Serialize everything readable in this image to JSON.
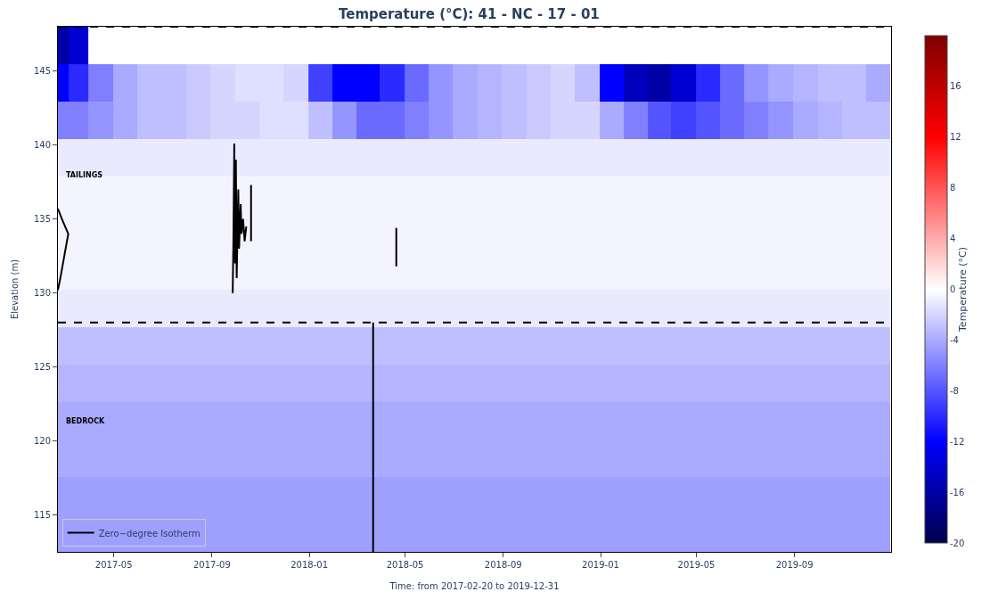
{
  "chart_data": {
    "type": "heatmap",
    "title": "Temperature (°C): 41 - NC - 17 - 01",
    "xlabel": "Time: from 2017-02-20 to 2019-12-31",
    "ylabel": "Elevation (m)",
    "clabel": "Temperature (°C)",
    "x": [
      "2017-02-24",
      "2017-03-15",
      "2017-04-15",
      "2017-05-15",
      "2017-06-15",
      "2017-07-15",
      "2017-08-15",
      "2017-09-15",
      "2017-10-15",
      "2017-11-15",
      "2017-12-15",
      "2018-01-15",
      "2018-02-15",
      "2018-03-15",
      "2018-04-15",
      "2018-05-15",
      "2018-06-15",
      "2018-07-15",
      "2018-08-15",
      "2018-09-15",
      "2018-10-15",
      "2018-11-15",
      "2018-12-15",
      "2019-01-15",
      "2019-02-15",
      "2019-03-15",
      "2019-04-15",
      "2019-05-15",
      "2019-06-15",
      "2019-07-15",
      "2019-08-15",
      "2019-09-15",
      "2019-10-15",
      "2019-11-15",
      "2019-12-15"
    ],
    "cells": [
      [
        -16,
        -14,
        null,
        null,
        null,
        null,
        null,
        null,
        null,
        null,
        null,
        null,
        null,
        null,
        null,
        null,
        null,
        null,
        null,
        null,
        null,
        null,
        null,
        null,
        null,
        null,
        null,
        null,
        null,
        null,
        null,
        null,
        null,
        null,
        null
      ],
      [
        -12,
        -10,
        -6,
        -4,
        -3,
        -3,
        -2.5,
        -2,
        -1.5,
        -1.5,
        -2,
        -9,
        -12,
        -12,
        -10,
        -7,
        -5,
        -4,
        -3.5,
        -3,
        -2.5,
        -2,
        -3,
        -12,
        -15,
        -16,
        -14,
        -10,
        -7,
        -5,
        -4,
        -3.5,
        -3,
        -3,
        -4
      ],
      [
        -6,
        -6,
        -5,
        -4,
        -3,
        -3,
        -2.5,
        -2,
        -2,
        -1.5,
        -1.5,
        -3,
        -5,
        -7,
        -7,
        -6,
        -5,
        -4,
        -3.5,
        -3,
        -2.5,
        -2,
        -2,
        -4,
        -6,
        -8,
        -9,
        -8,
        -7,
        -6,
        -5,
        -4,
        -3.5,
        -3,
        -3
      ],
      [
        -1,
        -1,
        -1,
        -1,
        -1,
        -1,
        -1,
        -1,
        -1,
        -1,
        -1,
        -1,
        -1,
        -1,
        -1,
        -1,
        -1,
        -1,
        -1,
        -1,
        -1,
        -1,
        -1,
        -1,
        -1,
        -1,
        -1,
        -1,
        -1,
        -1,
        -1,
        -1,
        -1,
        -1,
        -1
      ],
      [
        -0.5,
        -0.5,
        -0.5,
        -0.5,
        -0.5,
        -0.5,
        -0.5,
        -0.5,
        -0.5,
        -0.5,
        -0.5,
        -0.5,
        -0.5,
        -0.5,
        -0.5,
        -0.5,
        -0.5,
        -0.5,
        -0.5,
        -0.5,
        -0.5,
        -0.5,
        -0.5,
        -0.5,
        -0.5,
        -0.5,
        -0.5,
        -0.5,
        -0.5,
        -0.5,
        -0.5,
        -0.5,
        -0.5,
        -0.5,
        -0.5
      ],
      [
        -0.5,
        -0.5,
        -0.5,
        -0.5,
        -0.5,
        -0.5,
        -0.5,
        -0.5,
        -0.5,
        -0.5,
        -0.5,
        -0.5,
        -0.5,
        -0.5,
        -0.5,
        -0.5,
        -0.5,
        -0.5,
        -0.5,
        -0.5,
        -0.5,
        -0.5,
        -0.5,
        -0.5,
        -0.5,
        -0.5,
        -0.5,
        -0.5,
        -0.5,
        -0.5,
        -0.5,
        -0.5,
        -0.5,
        -0.5,
        -0.5
      ],
      [
        -0.5,
        -0.5,
        -0.5,
        -0.5,
        -0.5,
        -0.5,
        -0.5,
        -0.5,
        -0.5,
        -0.5,
        -0.5,
        -0.5,
        -0.5,
        -0.5,
        -0.5,
        -0.5,
        -0.5,
        -0.5,
        -0.5,
        -0.5,
        -0.5,
        -0.5,
        -0.5,
        -0.5,
        -0.5,
        -0.5,
        -0.5,
        -0.5,
        -0.5,
        -0.5,
        -0.5,
        -0.5,
        -0.5,
        -0.5,
        -0.5
      ],
      [
        -1,
        -1,
        -1,
        -1,
        -1,
        -1,
        -1,
        -1,
        -1,
        -1,
        -1,
        -1,
        -1,
        -1,
        -1,
        -1,
        -1,
        -1,
        -1,
        -1,
        -1,
        -1,
        -1,
        -1,
        -1,
        -1,
        -1,
        -1,
        -1,
        -1,
        -1,
        -1,
        -1,
        -1,
        -1
      ],
      [
        -3,
        -3,
        -3,
        -3,
        -3,
        -3,
        -3,
        -3,
        -3,
        -3,
        -3,
        -3,
        -3,
        -3,
        -3,
        -3,
        -3,
        -3,
        -3,
        -3,
        -3,
        -3,
        -3,
        -3,
        -3,
        -3,
        -3,
        -3,
        -3,
        -3,
        -3,
        -3,
        -3,
        -3,
        -3
      ],
      [
        -3.5,
        -3.5,
        -3.5,
        -3.5,
        -3.5,
        -3.5,
        -3.5,
        -3.5,
        -3.5,
        -3.5,
        -3.5,
        -3.5,
        -3.5,
        -3.5,
        -3.5,
        -3.5,
        -3.5,
        -3.5,
        -3.5,
        -3.5,
        -3.5,
        -3.5,
        -3.5,
        -3.5,
        -3.5,
        -3.5,
        -3.5,
        -3.5,
        -3.5,
        -3.5,
        -3.5,
        -3.5,
        -3.5,
        -3.5,
        -3.5
      ],
      [
        -4,
        -4,
        -4,
        -4,
        -4,
        -4,
        -4,
        -4,
        -4,
        -4,
        -4,
        -4,
        -4,
        -4,
        -4,
        -4,
        -4,
        -4,
        -4,
        -4,
        -4,
        -4,
        -4,
        -4,
        -4,
        -4,
        -4,
        -4,
        -4,
        -4,
        -4,
        -4,
        -4,
        -4,
        -4
      ],
      [
        -4,
        -4,
        -4,
        -4,
        -4,
        -4,
        -4,
        -4,
        -4,
        -4,
        -4,
        -4,
        -4,
        -4,
        -4,
        -4,
        -4,
        -4,
        -4,
        -4,
        -4,
        -4,
        -4,
        -4,
        -4,
        -4,
        -4,
        -4,
        -4,
        -4,
        -4,
        -4,
        -4,
        -4,
        -4
      ],
      [
        -4.5,
        -4.5,
        -4.5,
        -4.5,
        -4.5,
        -4.5,
        -4.5,
        -4.5,
        -4.5,
        -4.5,
        -4.5,
        -4.5,
        -4.5,
        -4.5,
        -4.5,
        -4.5,
        -4.5,
        -4.5,
        -4.5,
        -4.5,
        -4.5,
        -4.5,
        -4.5,
        -4.5,
        -4.5,
        -4.5,
        -4.5,
        -4.5,
        -4.5,
        -4.5,
        -4.5,
        -4.5,
        -4.5,
        -4.5,
        -4.5
      ],
      [
        -4.5,
        -4.5,
        -4.5,
        -4.5,
        -4.5,
        -4.5,
        -4.5,
        -4.5,
        -4.5,
        -4.5,
        -4.5,
        -4.5,
        -4.5,
        -4.5,
        -4.5,
        -4.5,
        -4.5,
        -4.5,
        -4.5,
        -4.5,
        -4.5,
        -4.5,
        -4.5,
        -4.5,
        -4.5,
        -4.5,
        -4.5,
        -4.5,
        -4.5,
        -4.5,
        -4.5,
        -4.5,
        -4.5,
        -4.5,
        -4.5
      ]
    ],
    "clim": [
      -20,
      20
    ],
    "cticks": [
      -20,
      -16,
      -12,
      -8,
      -4,
      0,
      4,
      8,
      12,
      16
    ],
    "xlim": [
      "2017-02-20",
      "2019-12-31"
    ],
    "xticks": [
      "2017-05",
      "2017-09",
      "2018-01",
      "2018-05",
      "2018-09",
      "2019-01",
      "2019-05",
      "2019-09"
    ],
    "ylim": [
      112.5,
      148
    ],
    "yticks": [
      115,
      120,
      125,
      130,
      135,
      140,
      145
    ],
    "series": [
      {
        "name": "Zero−degree Isotherm",
        "type": "line",
        "color": "#000000",
        "line_style": "solid",
        "x": [
          "2017-02-20",
          "2017-02-25",
          "2017-03-05",
          "2017-02-28",
          "2017-02-23",
          "2017-02-20",
          null,
          "2017-09-27",
          "2017-09-28",
          "2017-09-29",
          "2017-09-30",
          "2017-10-01",
          "2017-10-02",
          "2017-10-04",
          "2017-10-05",
          "2017-10-07",
          "2017-10-08",
          "2017-10-10",
          "2017-10-12",
          "2017-10-14",
          null,
          "2017-10-20",
          "2017-10-20",
          null,
          "2018-03-22",
          "2018-03-22",
          null,
          "2018-04-20",
          "2018-04-20"
        ],
        "values": [
          135.7,
          135.0,
          134.0,
          132.5,
          131.0,
          130.2,
          null,
          130.0,
          134,
          140.1,
          132,
          139,
          131,
          137,
          133,
          136,
          134,
          135,
          133.5,
          134.5,
          null,
          133.5,
          137.3,
          null,
          112.5,
          128.0,
          null,
          131.8,
          134.4
        ]
      }
    ],
    "ref_lines": [
      {
        "axis": "y",
        "value": 128,
        "line_style": "dashed",
        "color": "#000000"
      },
      {
        "axis": "y",
        "value": 148,
        "line_style": "dashed",
        "color": "#000000"
      }
    ],
    "annotations": [
      "TAILINGS",
      "BEDROCK"
    ],
    "legend": "bottom left"
  }
}
